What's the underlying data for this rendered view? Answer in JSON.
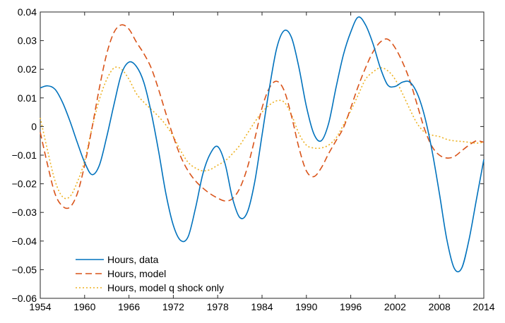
{
  "chart_data": {
    "type": "line",
    "title": "",
    "xlabel": "",
    "ylabel": "",
    "xlim": [
      1954,
      2014
    ],
    "ylim": [
      -0.06,
      0.04
    ],
    "xticks": [
      1954,
      1960,
      1966,
      1972,
      1978,
      1984,
      1990,
      1996,
      2002,
      2008,
      2014
    ],
    "xtick_labels": [
      "1954",
      "1960",
      "1966",
      "1972",
      "1978",
      "1984",
      "1990",
      "1996",
      "2002",
      "2008",
      "2014"
    ],
    "yticks": [
      -0.06,
      -0.05,
      -0.04,
      -0.03,
      -0.02,
      -0.01,
      0,
      0.01,
      0.02,
      0.03,
      0.04
    ],
    "ytick_labels": [
      "−0.06",
      "−0.05",
      "−0.04",
      "−0.03",
      "−0.02",
      "−0.01",
      "0",
      "0.01",
      "0.02",
      "0.03",
      "0.04"
    ],
    "grid": false,
    "legend_position": "bottom-left",
    "series": [
      {
        "name": "Hours, data",
        "style": "solid",
        "color": "#0072BD",
        "x": [
          1954,
          1955,
          1956,
          1957,
          1958,
          1959,
          1960,
          1961,
          1962,
          1963,
          1964,
          1965,
          1966,
          1967,
          1968,
          1969,
          1970,
          1971,
          1972,
          1973,
          1974,
          1975,
          1976,
          1977,
          1978,
          1979,
          1980,
          1981,
          1982,
          1983,
          1984,
          1985,
          1986,
          1987,
          1988,
          1989,
          1990,
          1991,
          1992,
          1993,
          1994,
          1995,
          1996,
          1997,
          1998,
          1999,
          2000,
          2001,
          2002,
          2003,
          2004,
          2005,
          2006,
          2007,
          2008,
          2009,
          2010,
          2011,
          2012,
          2013,
          2014
        ],
        "y": [
          0.0135,
          0.0142,
          0.013,
          0.0085,
          0.002,
          -0.0055,
          -0.0125,
          -0.0168,
          -0.0135,
          -0.0035,
          0.008,
          0.0185,
          0.0225,
          0.021,
          0.0155,
          0.005,
          -0.0085,
          -0.0235,
          -0.0345,
          -0.0398,
          -0.0385,
          -0.0285,
          -0.0165,
          -0.0095,
          -0.007,
          -0.013,
          -0.025,
          -0.0318,
          -0.03,
          -0.0195,
          -0.003,
          0.0135,
          0.0275,
          0.0335,
          0.031,
          0.0205,
          0.007,
          -0.0025,
          -0.005,
          0.001,
          0.0135,
          0.025,
          0.033,
          0.0382,
          0.0355,
          0.029,
          0.0205,
          0.0145,
          0.014,
          0.0155,
          0.0155,
          0.0115,
          0.0035,
          -0.0085,
          -0.0235,
          -0.0395,
          -0.0495,
          -0.0495,
          -0.0395,
          -0.0255,
          -0.0115
        ]
      },
      {
        "name": "Hours, model",
        "style": "dashed",
        "color": "#D95319",
        "x": [
          1954,
          1955,
          1956,
          1957,
          1958,
          1959,
          1960,
          1961,
          1962,
          1963,
          1964,
          1965,
          1966,
          1967,
          1968,
          1969,
          1970,
          1971,
          1972,
          1973,
          1974,
          1975,
          1976,
          1977,
          1978,
          1979,
          1980,
          1981,
          1982,
          1983,
          1984,
          1985,
          1986,
          1987,
          1988,
          1989,
          1990,
          1991,
          1992,
          1993,
          1994,
          1995,
          1996,
          1997,
          1998,
          1999,
          2000,
          2001,
          2002,
          2003,
          2004,
          2005,
          2006,
          2007,
          2008,
          2009,
          2010,
          2011,
          2012,
          2013,
          2014
        ],
        "y": [
          -0.002,
          -0.0135,
          -0.0235,
          -0.0278,
          -0.0282,
          -0.0235,
          -0.0135,
          -0.0005,
          0.0135,
          0.0255,
          0.033,
          0.0355,
          0.034,
          0.0295,
          0.0255,
          0.0205,
          0.013,
          0.0045,
          -0.0035,
          -0.0105,
          -0.0155,
          -0.019,
          -0.0215,
          -0.0235,
          -0.025,
          -0.026,
          -0.0252,
          -0.0215,
          -0.0145,
          -0.0045,
          0.0065,
          0.0135,
          0.0158,
          0.0125,
          0.0035,
          -0.0075,
          -0.0155,
          -0.0175,
          -0.0145,
          -0.0095,
          -0.005,
          -0.0005,
          0.0065,
          0.014,
          0.0205,
          0.026,
          0.0295,
          0.0305,
          0.0275,
          0.0225,
          0.016,
          0.0075,
          -0.001,
          -0.007,
          -0.01,
          -0.011,
          -0.0105,
          -0.0085,
          -0.0065,
          -0.005,
          -0.0055
        ]
      },
      {
        "name": "Hours, model q shock only",
        "style": "dotted",
        "color": "#EDB120",
        "x": [
          1954,
          1955,
          1956,
          1957,
          1958,
          1959,
          1960,
          1961,
          1962,
          1963,
          1964,
          1965,
          1966,
          1967,
          1968,
          1969,
          1970,
          1971,
          1972,
          1973,
          1974,
          1975,
          1976,
          1977,
          1978,
          1979,
          1980,
          1981,
          1982,
          1983,
          1984,
          1985,
          1986,
          1987,
          1988,
          1989,
          1990,
          1991,
          1992,
          1993,
          1994,
          1995,
          1996,
          1997,
          1998,
          1999,
          2000,
          2001,
          2002,
          2003,
          2004,
          2005,
          2006,
          2007,
          2008,
          2009,
          2010,
          2011,
          2012,
          2013,
          2014
        ],
        "y": [
          0.003,
          -0.0085,
          -0.019,
          -0.0245,
          -0.0245,
          -0.0195,
          -0.012,
          -0.0005,
          0.0095,
          0.0165,
          0.0205,
          0.02,
          0.0165,
          0.0115,
          0.0085,
          0.006,
          0.0035,
          0.0005,
          -0.0035,
          -0.0085,
          -0.0125,
          -0.0145,
          -0.0155,
          -0.015,
          -0.0135,
          -0.012,
          -0.0095,
          -0.0065,
          -0.0025,
          0.0015,
          0.005,
          0.0075,
          0.009,
          0.0085,
          0.004,
          -0.0025,
          -0.0065,
          -0.0075,
          -0.0075,
          -0.0065,
          -0.004,
          0.0005,
          0.0055,
          0.011,
          0.0165,
          0.019,
          0.0205,
          0.0195,
          0.0165,
          0.0115,
          0.006,
          0.001,
          -0.002,
          -0.003,
          -0.0035,
          -0.0045,
          -0.005,
          -0.0052,
          -0.0055,
          -0.0058,
          -0.0055
        ]
      }
    ]
  }
}
